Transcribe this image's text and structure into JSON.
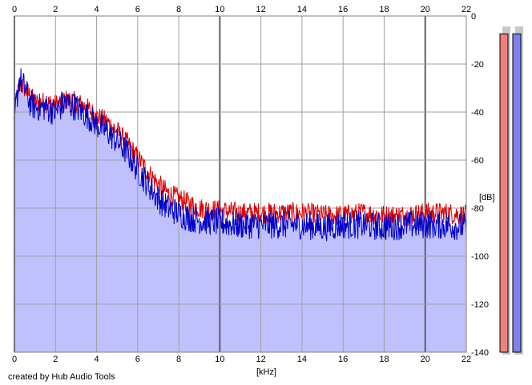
{
  "footer": {
    "credit": "created by Hub Audio Tools"
  },
  "chart_data": {
    "type": "area",
    "title": "",
    "xlabel": "[kHz]",
    "ylabel": "[dB]",
    "xlim": [
      0,
      22
    ],
    "ylim": [
      -140,
      0
    ],
    "x_ticks": [
      "0",
      "2",
      "4",
      "6",
      "8",
      "10",
      "12",
      "14",
      "16",
      "18",
      "20",
      "22"
    ],
    "y_ticks": [
      "0",
      "-20",
      "-40",
      "-60",
      "-80",
      "-100",
      "-120",
      "-140"
    ],
    "grid": true,
    "legend": "none",
    "series": [
      {
        "color": "#e00000",
        "x": [
          0,
          0.25,
          0.5,
          0.75,
          1,
          1.5,
          2,
          2.5,
          3,
          3.5,
          4,
          4.5,
          5,
          5.5,
          6,
          6.5,
          7,
          7.5,
          8,
          8.5,
          9,
          10,
          11,
          12,
          13,
          14,
          15,
          16,
          17,
          18,
          19,
          20,
          21,
          22
        ],
        "values": [
          -40,
          -28,
          -30,
          -33,
          -36,
          -36,
          -37,
          -35,
          -36,
          -38,
          -42,
          -44,
          -48,
          -53,
          -59,
          -65,
          -70,
          -74,
          -76,
          -78,
          -80,
          -81,
          -82,
          -82,
          -82,
          -82,
          -83,
          -83,
          -82,
          -83,
          -83,
          -82,
          -82,
          -83
        ]
      },
      {
        "color": "#0000c8",
        "fill": "#c0c0ff",
        "x": [
          0,
          0.25,
          0.5,
          0.75,
          1,
          1.5,
          2,
          2.5,
          3,
          3.5,
          4,
          4.5,
          5,
          5.5,
          6,
          6.5,
          7,
          7.5,
          8,
          8.5,
          9,
          10,
          11,
          12,
          13,
          14,
          15,
          16,
          17,
          18,
          19,
          20,
          21,
          22
        ],
        "values": [
          -42,
          -26,
          -30,
          -36,
          -38,
          -38,
          -40,
          -36,
          -38,
          -41,
          -45,
          -48,
          -52,
          -57,
          -64,
          -70,
          -76,
          -80,
          -82,
          -84,
          -85,
          -86,
          -87,
          -87,
          -87,
          -87,
          -88,
          -87,
          -87,
          -88,
          -87,
          -87,
          -87,
          -88
        ]
      }
    ],
    "level_meters": [
      {
        "color": "#f08080",
        "level": 0.97
      },
      {
        "color": "#8080f0",
        "level": 0.97
      }
    ]
  }
}
